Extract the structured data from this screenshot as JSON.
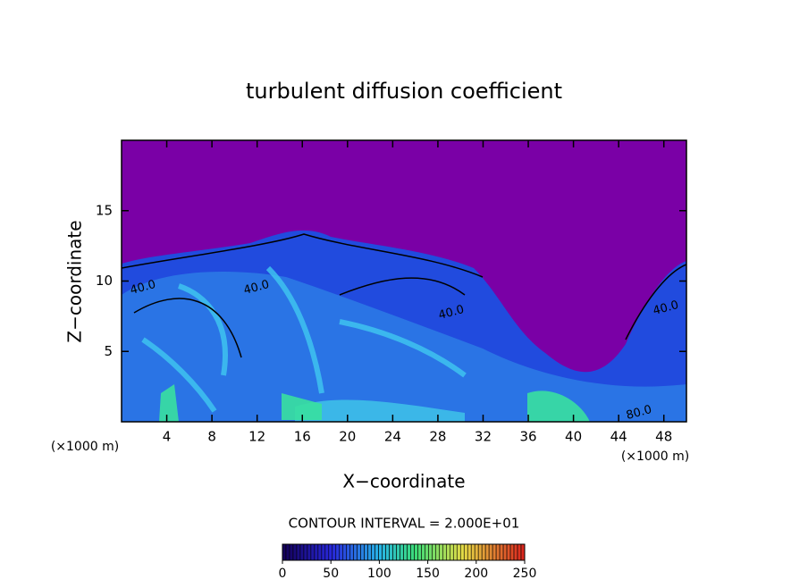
{
  "chart_data": {
    "type": "contour",
    "title": "turbulent diffusion coefficient",
    "x_label": "X−coordinate",
    "y_label": "Z−coordinate",
    "x_unit": "(×1000 m)",
    "y_unit": "(×1000 m)",
    "xlim": [
      0,
      50
    ],
    "xticks": [
      4,
      8,
      12,
      16,
      20,
      24,
      28,
      32,
      36,
      40,
      44,
      48
    ],
    "ylim": [
      0,
      20
    ],
    "yticks": [
      5,
      10,
      15
    ],
    "contour_interval": "CONTOUR INTERVAL = 2.000E+01",
    "contour_labels": [
      "40.0",
      "40.0",
      "40.0",
      "40.0",
      "80.0"
    ],
    "colorbar": {
      "lim": [
        0,
        250
      ],
      "ticks": [
        0,
        50,
        100,
        150,
        200,
        250
      ]
    }
  }
}
